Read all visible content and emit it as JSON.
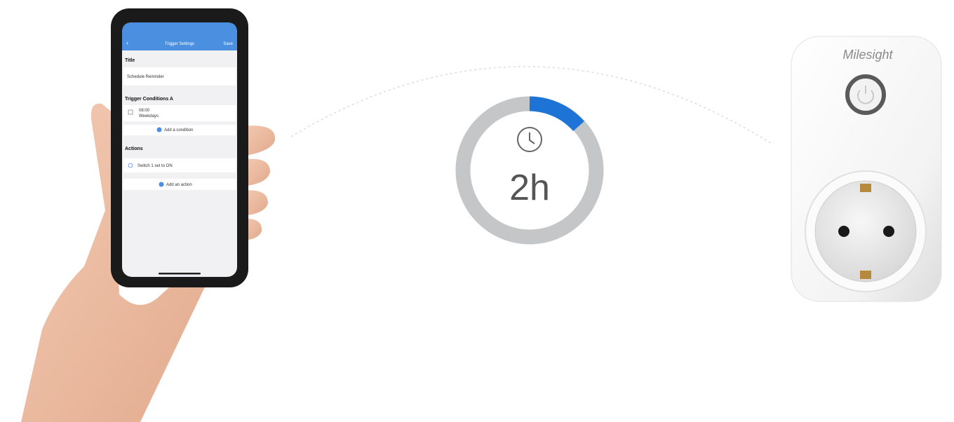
{
  "phone": {
    "nav_title": "Trigger Settings",
    "nav_action": "Save",
    "title_label": "Title",
    "title_value": "Schedule Reminder",
    "conditions_label": "Trigger Conditions A",
    "condition_time": "08:00",
    "condition_days": "Weekdays",
    "add_condition": "Add a condition",
    "actions_label": "Actions",
    "action_value": "Switch 1 set to ON",
    "add_action": "Add an action"
  },
  "timer": {
    "label": "2h"
  },
  "plug": {
    "brand": "Milesight"
  }
}
